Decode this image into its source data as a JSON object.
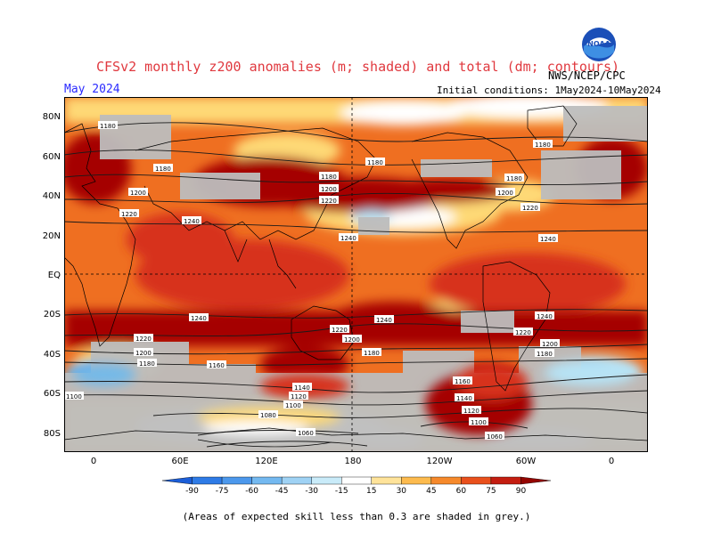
{
  "header": {
    "title": "CFSv2 monthly z200 anomalies (m; shaded) and total (dm; contours)",
    "month": "May 2024",
    "initial_conditions": "Initial conditions: 1May2024-10May2024",
    "org": "NWS/NCEP/CPC",
    "logo_text": "NOAA"
  },
  "map": {
    "lat_labels": [
      "80N",
      "60N",
      "40N",
      "20N",
      "EQ",
      "20S",
      "40S",
      "60S",
      "80S"
    ],
    "lon_labels": [
      "0",
      "60E",
      "120E",
      "180",
      "120W",
      "60W",
      "0"
    ],
    "contour_labels": [
      "1180",
      "1180",
      "1200",
      "1220",
      "1240",
      "1180",
      "1200",
      "1220",
      "1180",
      "1180",
      "1200",
      "1220",
      "1240",
      "1240",
      "1180",
      "1240",
      "1240",
      "1240",
      "1220",
      "1200",
      "1180",
      "1220",
      "1200",
      "1180",
      "1220",
      "1200",
      "1180",
      "1160",
      "1140",
      "1120",
      "1100",
      "1080",
      "1060",
      "1160",
      "1140",
      "1120",
      "1100",
      "1060",
      "1100"
    ],
    "colors": {
      "grey_low_skill": "#bdbdbd",
      "dark_red": "#a50000",
      "red": "#d7301f",
      "orange_red": "#ef6f21",
      "orange": "#fdae61",
      "light_orange": "#fed976",
      "pale": "#ffe8a6",
      "light_blue": "#b7e3f5",
      "blue": "#74b9e8",
      "mid_blue": "#3d8fe0"
    }
  },
  "colorbar": {
    "ticks": [
      "-90",
      "-75",
      "-60",
      "-45",
      "-30",
      "-15",
      "15",
      "30",
      "45",
      "60",
      "75",
      "90"
    ],
    "colors": [
      "#1c5ed8",
      "#2e7be6",
      "#4c98ec",
      "#74b9f0",
      "#9fd2f4",
      "#c9ebf9",
      "#ffffff",
      "#ffe39a",
      "#fdbb4e",
      "#f6892b",
      "#e9501c",
      "#c41d10",
      "#940500"
    ]
  },
  "footer": {
    "note": "(Areas of expected skill less than 0.3 are shaded in grey.)"
  }
}
